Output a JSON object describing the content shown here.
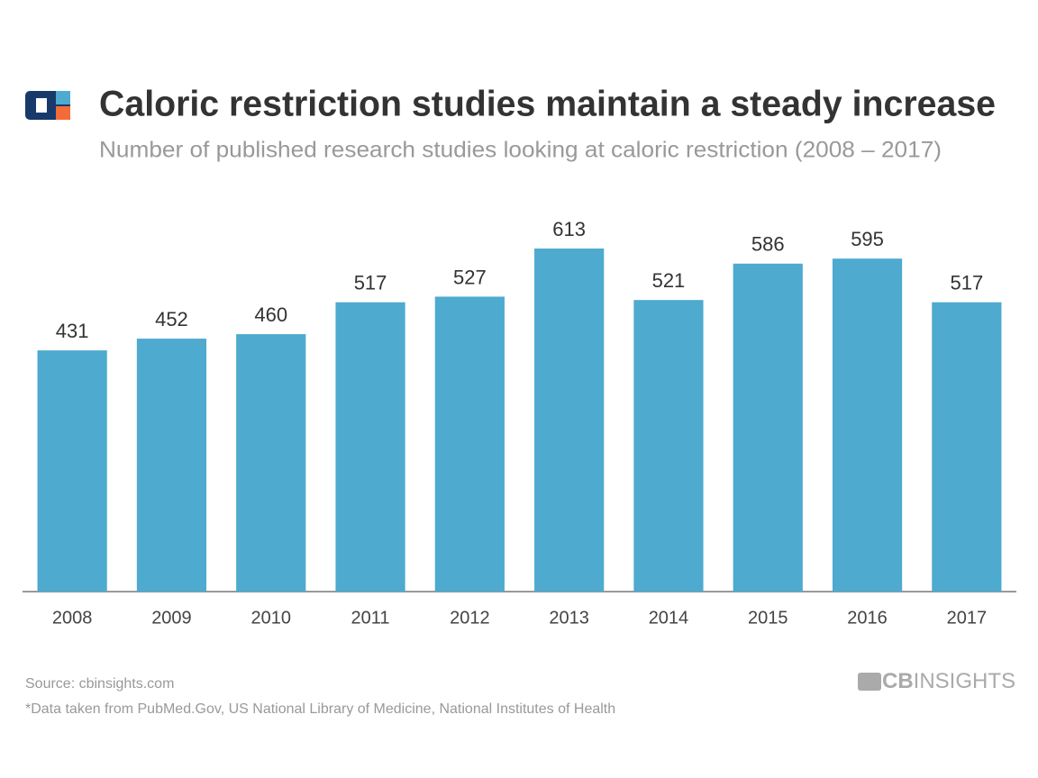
{
  "chart_data": {
    "type": "bar",
    "title": "Caloric restriction studies maintain a steady increase",
    "subtitle": "Number of published research studies looking at caloric restriction (2008 – 2017)",
    "categories": [
      "2008",
      "2009",
      "2010",
      "2011",
      "2012",
      "2013",
      "2014",
      "2015",
      "2016",
      "2017"
    ],
    "values": [
      431,
      452,
      460,
      517,
      527,
      613,
      521,
      586,
      595,
      517
    ],
    "color": "#4eaacf",
    "source": "Source: cbinsights.com",
    "footnote": "*Data taken from PubMed.Gov, US National Library of Medicine,  National Institutes of Health",
    "brand": [
      "CB",
      "INSIGHTS"
    ]
  }
}
